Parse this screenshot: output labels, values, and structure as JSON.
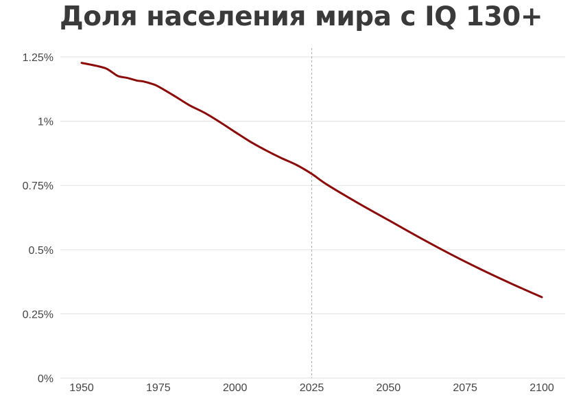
{
  "chart_data": {
    "type": "line",
    "title": "Доля населения мира с IQ 130+",
    "xlabel": "",
    "ylabel": "",
    "xlim": [
      1950,
      2100
    ],
    "ylim": [
      0,
      1.25
    ],
    "x_ticks": [
      1950,
      1975,
      2000,
      2025,
      2050,
      2075,
      2100
    ],
    "x_tick_labels": [
      "1950",
      "1975",
      "2000",
      "2025",
      "2050",
      "2075",
      "2100"
    ],
    "y_ticks": [
      0,
      0.25,
      0.5,
      0.75,
      1,
      1.25
    ],
    "y_tick_labels": [
      "0%",
      "0.25%",
      "0.5%",
      "0.75%",
      "1%",
      "1.25%"
    ],
    "grid": "horizontal",
    "reference_line": {
      "x": 2025,
      "style": "dashed"
    },
    "series": [
      {
        "color": "#8b0a0a",
        "x": [
          1950,
          1955,
          1958,
          1960,
          1962,
          1965,
          1968,
          1970,
          1973,
          1975,
          1980,
          1985,
          1990,
          1995,
          2000,
          2005,
          2010,
          2015,
          2020,
          2025,
          2030,
          2040,
          2050,
          2060,
          2070,
          2080,
          2090,
          2100
        ],
        "values": [
          1.227,
          1.215,
          1.205,
          1.19,
          1.175,
          1.168,
          1.158,
          1.155,
          1.145,
          1.135,
          1.1,
          1.063,
          1.033,
          0.997,
          0.958,
          0.92,
          0.887,
          0.857,
          0.83,
          0.795,
          0.753,
          0.682,
          0.615,
          0.548,
          0.484,
          0.424,
          0.368,
          0.315
        ]
      }
    ]
  }
}
